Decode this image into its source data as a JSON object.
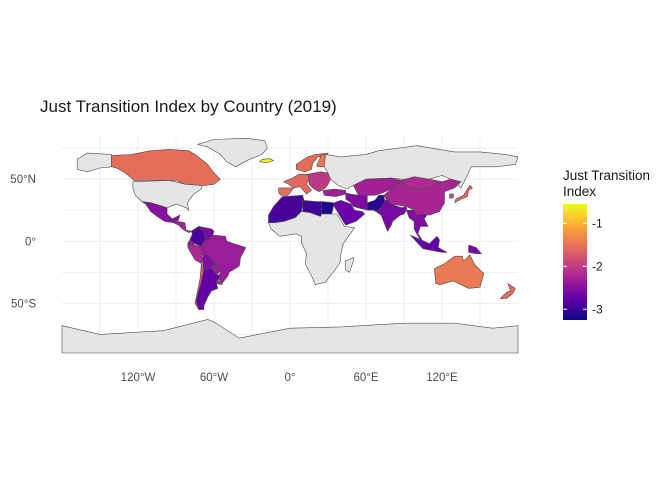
{
  "title": "Just Transition Index by Country (2019)",
  "chart_data": {
    "type": "choropleth",
    "title": "Just Transition Index by Country (2019)",
    "x_ticks": [
      "120°W",
      "60°W",
      "0°",
      "60°E",
      "120°E"
    ],
    "x_tick_values": [
      -120,
      -60,
      0,
      60,
      120
    ],
    "y_ticks": [
      "50°N",
      "0°",
      "50°S"
    ],
    "y_tick_values": [
      50,
      0,
      -50
    ],
    "xlim": [
      -180,
      180
    ],
    "ylim": [
      -90,
      84
    ],
    "grid": true,
    "legend": {
      "title_lines": [
        "Just Transition",
        "Index"
      ],
      "ticks": [
        "-1",
        "-2",
        "-3"
      ],
      "tick_values": [
        -1,
        -2,
        -3
      ],
      "range": [
        -3.25,
        -0.55
      ],
      "colors": [
        "#0d0887",
        "#6a00a8",
        "#b12a90",
        "#e16462",
        "#fca636",
        "#f0f921"
      ],
      "placement": "right"
    },
    "no_data_color": "#e5e5e5",
    "regions": [
      {
        "name": "Greenland",
        "value": null
      },
      {
        "name": "Canada",
        "value": -1.55
      },
      {
        "name": "Alaska",
        "value": null
      },
      {
        "name": "United States",
        "value": null
      },
      {
        "name": "Mexico",
        "value": -2.5
      },
      {
        "name": "Central America",
        "value": -2.3
      },
      {
        "name": "Colombia",
        "value": -2.9
      },
      {
        "name": "Venezuela",
        "value": -2.6
      },
      {
        "name": "Ecuador",
        "value": -2.4
      },
      {
        "name": "Peru",
        "value": -2.2
      },
      {
        "name": "Brazil",
        "value": -2.35
      },
      {
        "name": "Bolivia",
        "value": -2.55
      },
      {
        "name": "Paraguay",
        "value": -2.35
      },
      {
        "name": "Chile",
        "value": -1.75
      },
      {
        "name": "Argentina",
        "value": -2.75
      },
      {
        "name": "Uruguay",
        "value": -2.2
      },
      {
        "name": "Iceland",
        "value": -0.6
      },
      {
        "name": "Scandinavia",
        "value": -1.55
      },
      {
        "name": "Finland",
        "value": -1.45
      },
      {
        "name": "Western Europe",
        "value": -1.6
      },
      {
        "name": "Spain",
        "value": -1.55
      },
      {
        "name": "Eastern Europe",
        "value": -2.05
      },
      {
        "name": "Russia",
        "value": null
      },
      {
        "name": "North Africa West",
        "value": -2.9
      },
      {
        "name": "Libya",
        "value": -2.95
      },
      {
        "name": "Egypt",
        "value": -3.15
      },
      {
        "name": "Sub-Saharan Africa",
        "value": null
      },
      {
        "name": "Madagascar",
        "value": null
      },
      {
        "name": "Arabian Peninsula",
        "value": -2.7
      },
      {
        "name": "Iran",
        "value": -2.55
      },
      {
        "name": "Turkey",
        "value": -2.3
      },
      {
        "name": "Pakistan",
        "value": -3.1
      },
      {
        "name": "Central Asia",
        "value": -2.3
      },
      {
        "name": "Mongolia",
        "value": -2.2
      },
      {
        "name": "China",
        "value": -2.25
      },
      {
        "name": "India",
        "value": -2.6
      },
      {
        "name": "Southeast Asia",
        "value": -2.55
      },
      {
        "name": "Japan",
        "value": -1.6
      },
      {
        "name": "Korea",
        "value": -1.95
      },
      {
        "name": "Indonesia",
        "value": -2.75
      },
      {
        "name": "Papua New Guinea",
        "value": -2.6
      },
      {
        "name": "Australia",
        "value": -1.45
      },
      {
        "name": "New Zealand",
        "value": -1.55
      },
      {
        "name": "Antarctica",
        "value": null
      }
    ]
  }
}
